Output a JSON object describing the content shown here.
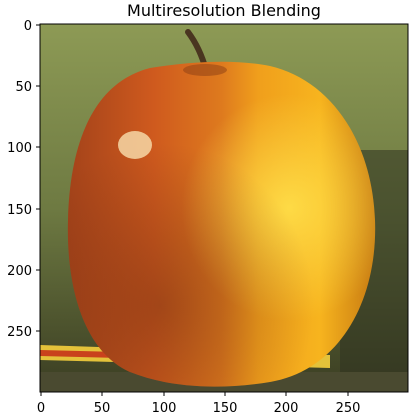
{
  "figure": {
    "title": "Multiresolution Blending",
    "image_description_colors": {
      "background": "#6f7a44",
      "apple_red": "#c8561c",
      "orange": "#f0a21a",
      "highlight": "#ffd83a",
      "stem": "#4a3520",
      "shadow": "#2f2a1a",
      "pencil": "#e4c23a"
    },
    "xaxis": {
      "ticks": [
        "0",
        "50",
        "100",
        "150",
        "200",
        "250"
      ],
      "range": [
        0,
        299
      ]
    },
    "yaxis": {
      "ticks": [
        "0",
        "50",
        "100",
        "150",
        "200",
        "250"
      ],
      "range": [
        0,
        299
      ]
    }
  }
}
